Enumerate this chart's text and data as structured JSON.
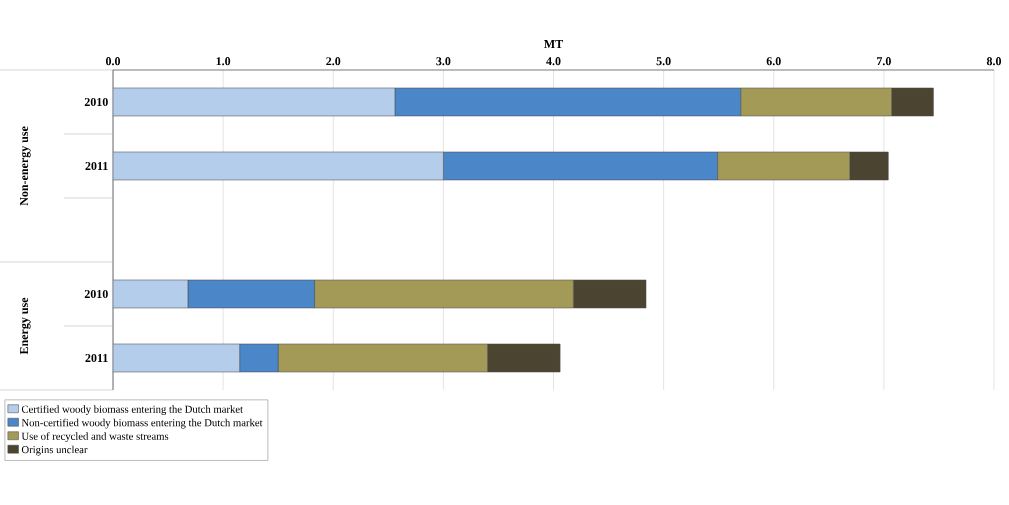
{
  "chart_data": {
    "type": "bar",
    "orientation": "horizontal",
    "stacked": true,
    "xlabel": "MT",
    "categories": [
      "2010",
      "2011",
      null,
      "2010",
      "2011"
    ],
    "series": [
      {
        "name": "Certified woody biomass entering the Dutch market",
        "color": "#b4cdea",
        "values": [
          2.56,
          3.0,
          null,
          0.68,
          1.15
        ]
      },
      {
        "name": "Non-certified woody biomass entering the Dutch market",
        "color": "#4a86c8",
        "values": [
          3.14,
          2.49,
          null,
          1.15,
          0.35
        ]
      },
      {
        "name": "Use of recycled and waste streams",
        "color": "#a39a58",
        "values": [
          1.37,
          1.2,
          null,
          2.35,
          1.9
        ]
      },
      {
        "name": "Origins unclear",
        "color": "#4a4430",
        "values": [
          0.38,
          0.35,
          null,
          0.66,
          0.66
        ]
      }
    ],
    "xlim": [
      0,
      8
    ],
    "xticks": [
      {
        "value": 0,
        "label": "0.0"
      },
      {
        "value": 1,
        "label": "1.0"
      },
      {
        "value": 2,
        "label": "2.0"
      },
      {
        "value": 3,
        "label": "3.0"
      },
      {
        "value": 4,
        "label": "4.0"
      },
      {
        "value": 5,
        "label": "5.0"
      },
      {
        "value": 6,
        "label": "6.0"
      },
      {
        "value": 7,
        "label": "7.0"
      },
      {
        "value": 8,
        "label": "8.0"
      }
    ],
    "grid": "x",
    "legend": "bottom",
    "annotations": [
      "Non-energy use",
      "Energy use"
    ]
  }
}
